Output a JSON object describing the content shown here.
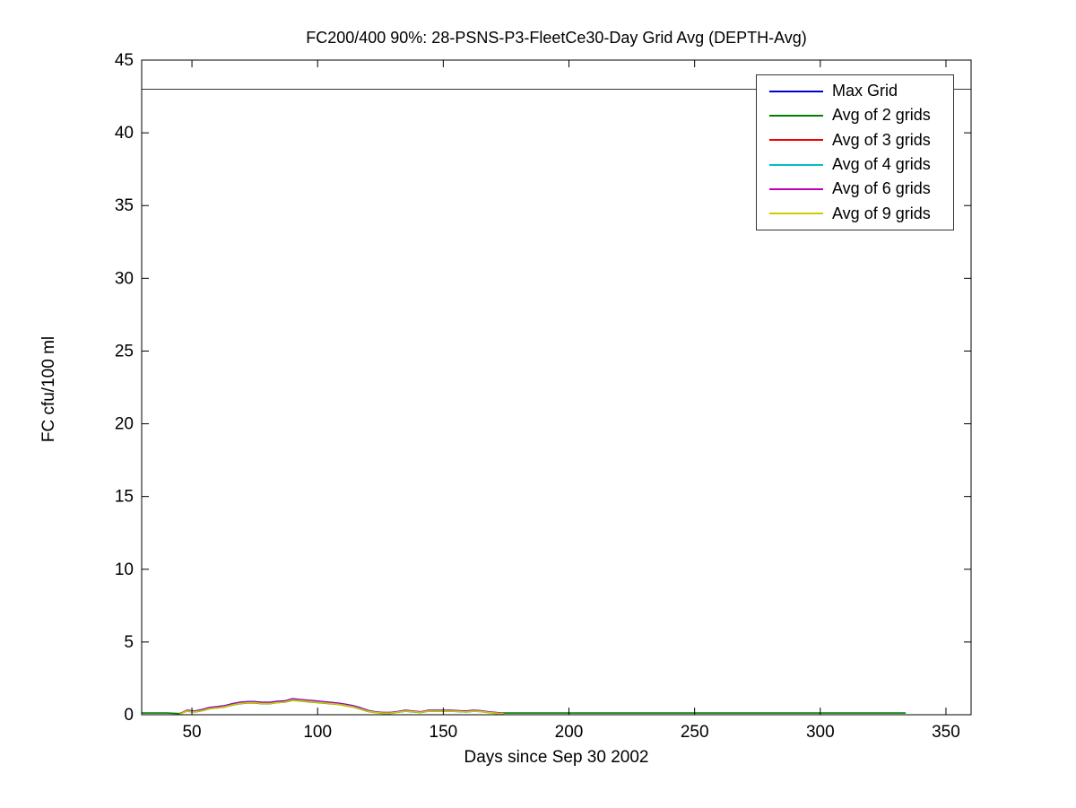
{
  "chart_data": {
    "type": "line",
    "title": "FC200/400 90%: 28-PSNS-P3-FleetCe30-Day Grid Avg (DEPTH-Avg)",
    "xlabel": "Days since Sep 30 2002",
    "ylabel": "FC cfu/100 ml",
    "xlim": [
      30,
      360
    ],
    "ylim": [
      0,
      45
    ],
    "xticks": [
      50,
      100,
      150,
      200,
      250,
      300,
      350
    ],
    "yticks": [
      0,
      5,
      10,
      15,
      20,
      25,
      30,
      35,
      40,
      45
    ],
    "grid": false,
    "legend_position": "top-right",
    "axis_color": "#000000",
    "threshold_line": {
      "y": 43,
      "color": "#3a3a3a"
    },
    "series": [
      {
        "name": "Max Grid",
        "color": "#0000CC",
        "x": [
          45,
          48,
          51,
          54,
          57,
          60,
          63,
          66,
          69,
          72,
          75,
          78,
          81,
          84,
          87,
          90,
          93,
          96,
          99,
          102,
          105,
          108,
          111,
          114,
          117,
          120,
          123,
          126,
          129,
          132,
          135,
          138,
          141,
          144,
          147,
          150,
          153,
          156,
          159,
          162,
          165,
          168,
          171,
          174
        ],
        "y": [
          0.05,
          0.3,
          0.25,
          0.35,
          0.5,
          0.55,
          0.62,
          0.75,
          0.85,
          0.9,
          0.9,
          0.85,
          0.85,
          0.92,
          0.95,
          1.1,
          1.05,
          1.0,
          0.95,
          0.9,
          0.85,
          0.8,
          0.72,
          0.62,
          0.48,
          0.3,
          0.2,
          0.15,
          0.15,
          0.22,
          0.3,
          0.25,
          0.2,
          0.3,
          0.3,
          0.3,
          0.3,
          0.28,
          0.25,
          0.3,
          0.28,
          0.2,
          0.15,
          0.1
        ]
      },
      {
        "name": "Avg of 2 grids",
        "color": "#008000",
        "x": [
          30,
          35,
          40,
          45,
          48,
          51,
          54,
          57,
          60,
          63,
          66,
          69,
          72,
          75,
          78,
          81,
          84,
          87,
          90,
          93,
          96,
          99,
          102,
          105,
          108,
          111,
          114,
          117,
          120,
          123,
          126,
          129,
          132,
          135,
          138,
          141,
          144,
          147,
          150,
          153,
          156,
          159,
          162,
          165,
          168,
          171,
          174,
          180,
          190,
          200,
          210,
          220,
          230,
          240,
          250,
          260,
          270,
          280,
          290,
          300,
          310,
          320,
          330,
          334
        ],
        "y": [
          0.12,
          0.12,
          0.12,
          0.08,
          0.24,
          0.19,
          0.27,
          0.41,
          0.46,
          0.53,
          0.66,
          0.76,
          0.81,
          0.81,
          0.76,
          0.76,
          0.83,
          0.86,
          1.0,
          0.95,
          0.9,
          0.85,
          0.81,
          0.76,
          0.71,
          0.63,
          0.53,
          0.39,
          0.23,
          0.15,
          0.1,
          0.1,
          0.17,
          0.24,
          0.2,
          0.15,
          0.24,
          0.24,
          0.24,
          0.24,
          0.22,
          0.19,
          0.24,
          0.22,
          0.15,
          0.1,
          0.12,
          0.12,
          0.12,
          0.12,
          0.12,
          0.12,
          0.12,
          0.12,
          0.12,
          0.12,
          0.12,
          0.12,
          0.12,
          0.12,
          0.12,
          0.12,
          0.12,
          0.12
        ]
      },
      {
        "name": "Avg of 3 grids",
        "color": "#EE0000",
        "x": [
          45,
          48,
          51,
          54,
          57,
          60,
          63,
          66,
          69,
          72,
          75,
          78,
          81,
          84,
          87,
          90,
          93,
          96,
          99,
          102,
          105,
          108,
          111,
          114,
          117,
          120,
          123,
          126,
          129,
          132,
          135,
          138,
          141,
          144,
          147,
          150,
          153,
          156,
          159,
          162,
          165,
          168,
          171,
          174
        ],
        "y": [
          0.04,
          0.27,
          0.22,
          0.31,
          0.46,
          0.51,
          0.58,
          0.71,
          0.81,
          0.86,
          0.86,
          0.81,
          0.81,
          0.88,
          0.91,
          1.06,
          1.01,
          0.96,
          0.91,
          0.86,
          0.81,
          0.76,
          0.68,
          0.58,
          0.44,
          0.27,
          0.18,
          0.13,
          0.13,
          0.2,
          0.27,
          0.23,
          0.18,
          0.27,
          0.27,
          0.27,
          0.27,
          0.25,
          0.22,
          0.27,
          0.25,
          0.18,
          0.13,
          0.08
        ]
      },
      {
        "name": "Avg of 4 grids",
        "color": "#00BFBF",
        "x": [
          45,
          48,
          51,
          54,
          57,
          60,
          63,
          66,
          69,
          72,
          75,
          78,
          81,
          84,
          87,
          90,
          93,
          96,
          99,
          102,
          105,
          108,
          111,
          114,
          117,
          120,
          123,
          126,
          129,
          132,
          135,
          138,
          141,
          144,
          147,
          150,
          153,
          156,
          159,
          162,
          165,
          168,
          171,
          174
        ],
        "y": [
          0.03,
          0.26,
          0.21,
          0.3,
          0.44,
          0.49,
          0.56,
          0.69,
          0.79,
          0.84,
          0.84,
          0.79,
          0.79,
          0.86,
          0.89,
          1.04,
          0.99,
          0.94,
          0.89,
          0.84,
          0.79,
          0.74,
          0.66,
          0.56,
          0.42,
          0.26,
          0.17,
          0.12,
          0.12,
          0.19,
          0.26,
          0.22,
          0.17,
          0.26,
          0.26,
          0.26,
          0.26,
          0.24,
          0.21,
          0.26,
          0.24,
          0.17,
          0.12,
          0.08
        ]
      },
      {
        "name": "Avg of 6 grids",
        "color": "#BF00BF",
        "x": [
          45,
          48,
          51,
          54,
          57,
          60,
          63,
          66,
          69,
          72,
          75,
          78,
          81,
          84,
          87,
          90,
          93,
          96,
          99,
          102,
          105,
          108,
          111,
          114,
          117,
          120,
          123,
          126,
          129,
          132,
          135,
          138,
          141,
          144,
          147,
          150,
          153,
          156,
          159,
          162,
          165,
          168,
          171,
          174
        ],
        "y": [
          0.04,
          0.28,
          0.23,
          0.33,
          0.48,
          0.53,
          0.6,
          0.73,
          0.83,
          0.88,
          0.88,
          0.83,
          0.83,
          0.9,
          0.93,
          1.08,
          1.03,
          0.98,
          0.93,
          0.88,
          0.83,
          0.78,
          0.7,
          0.6,
          0.46,
          0.28,
          0.19,
          0.14,
          0.14,
          0.21,
          0.28,
          0.24,
          0.19,
          0.28,
          0.28,
          0.28,
          0.28,
          0.26,
          0.23,
          0.28,
          0.26,
          0.19,
          0.14,
          0.09
        ]
      },
      {
        "name": "Avg of 9 grids",
        "color": "#CCCC00",
        "x": [
          45,
          48,
          51,
          54,
          57,
          60,
          63,
          66,
          69,
          72,
          75,
          78,
          81,
          84,
          87,
          90,
          93,
          96,
          99,
          102,
          105,
          108,
          111,
          114,
          117,
          120,
          123,
          126,
          129,
          132,
          135,
          138,
          141,
          144,
          147,
          150,
          153,
          156,
          159,
          162,
          165,
          168,
          171,
          174
        ],
        "y": [
          0.03,
          0.25,
          0.2,
          0.28,
          0.42,
          0.47,
          0.54,
          0.67,
          0.77,
          0.82,
          0.82,
          0.77,
          0.77,
          0.84,
          0.87,
          1.02,
          0.97,
          0.92,
          0.87,
          0.82,
          0.77,
          0.72,
          0.64,
          0.54,
          0.4,
          0.24,
          0.16,
          0.11,
          0.11,
          0.18,
          0.25,
          0.21,
          0.16,
          0.25,
          0.25,
          0.25,
          0.25,
          0.23,
          0.2,
          0.25,
          0.23,
          0.16,
          0.11,
          0.07
        ]
      }
    ]
  }
}
